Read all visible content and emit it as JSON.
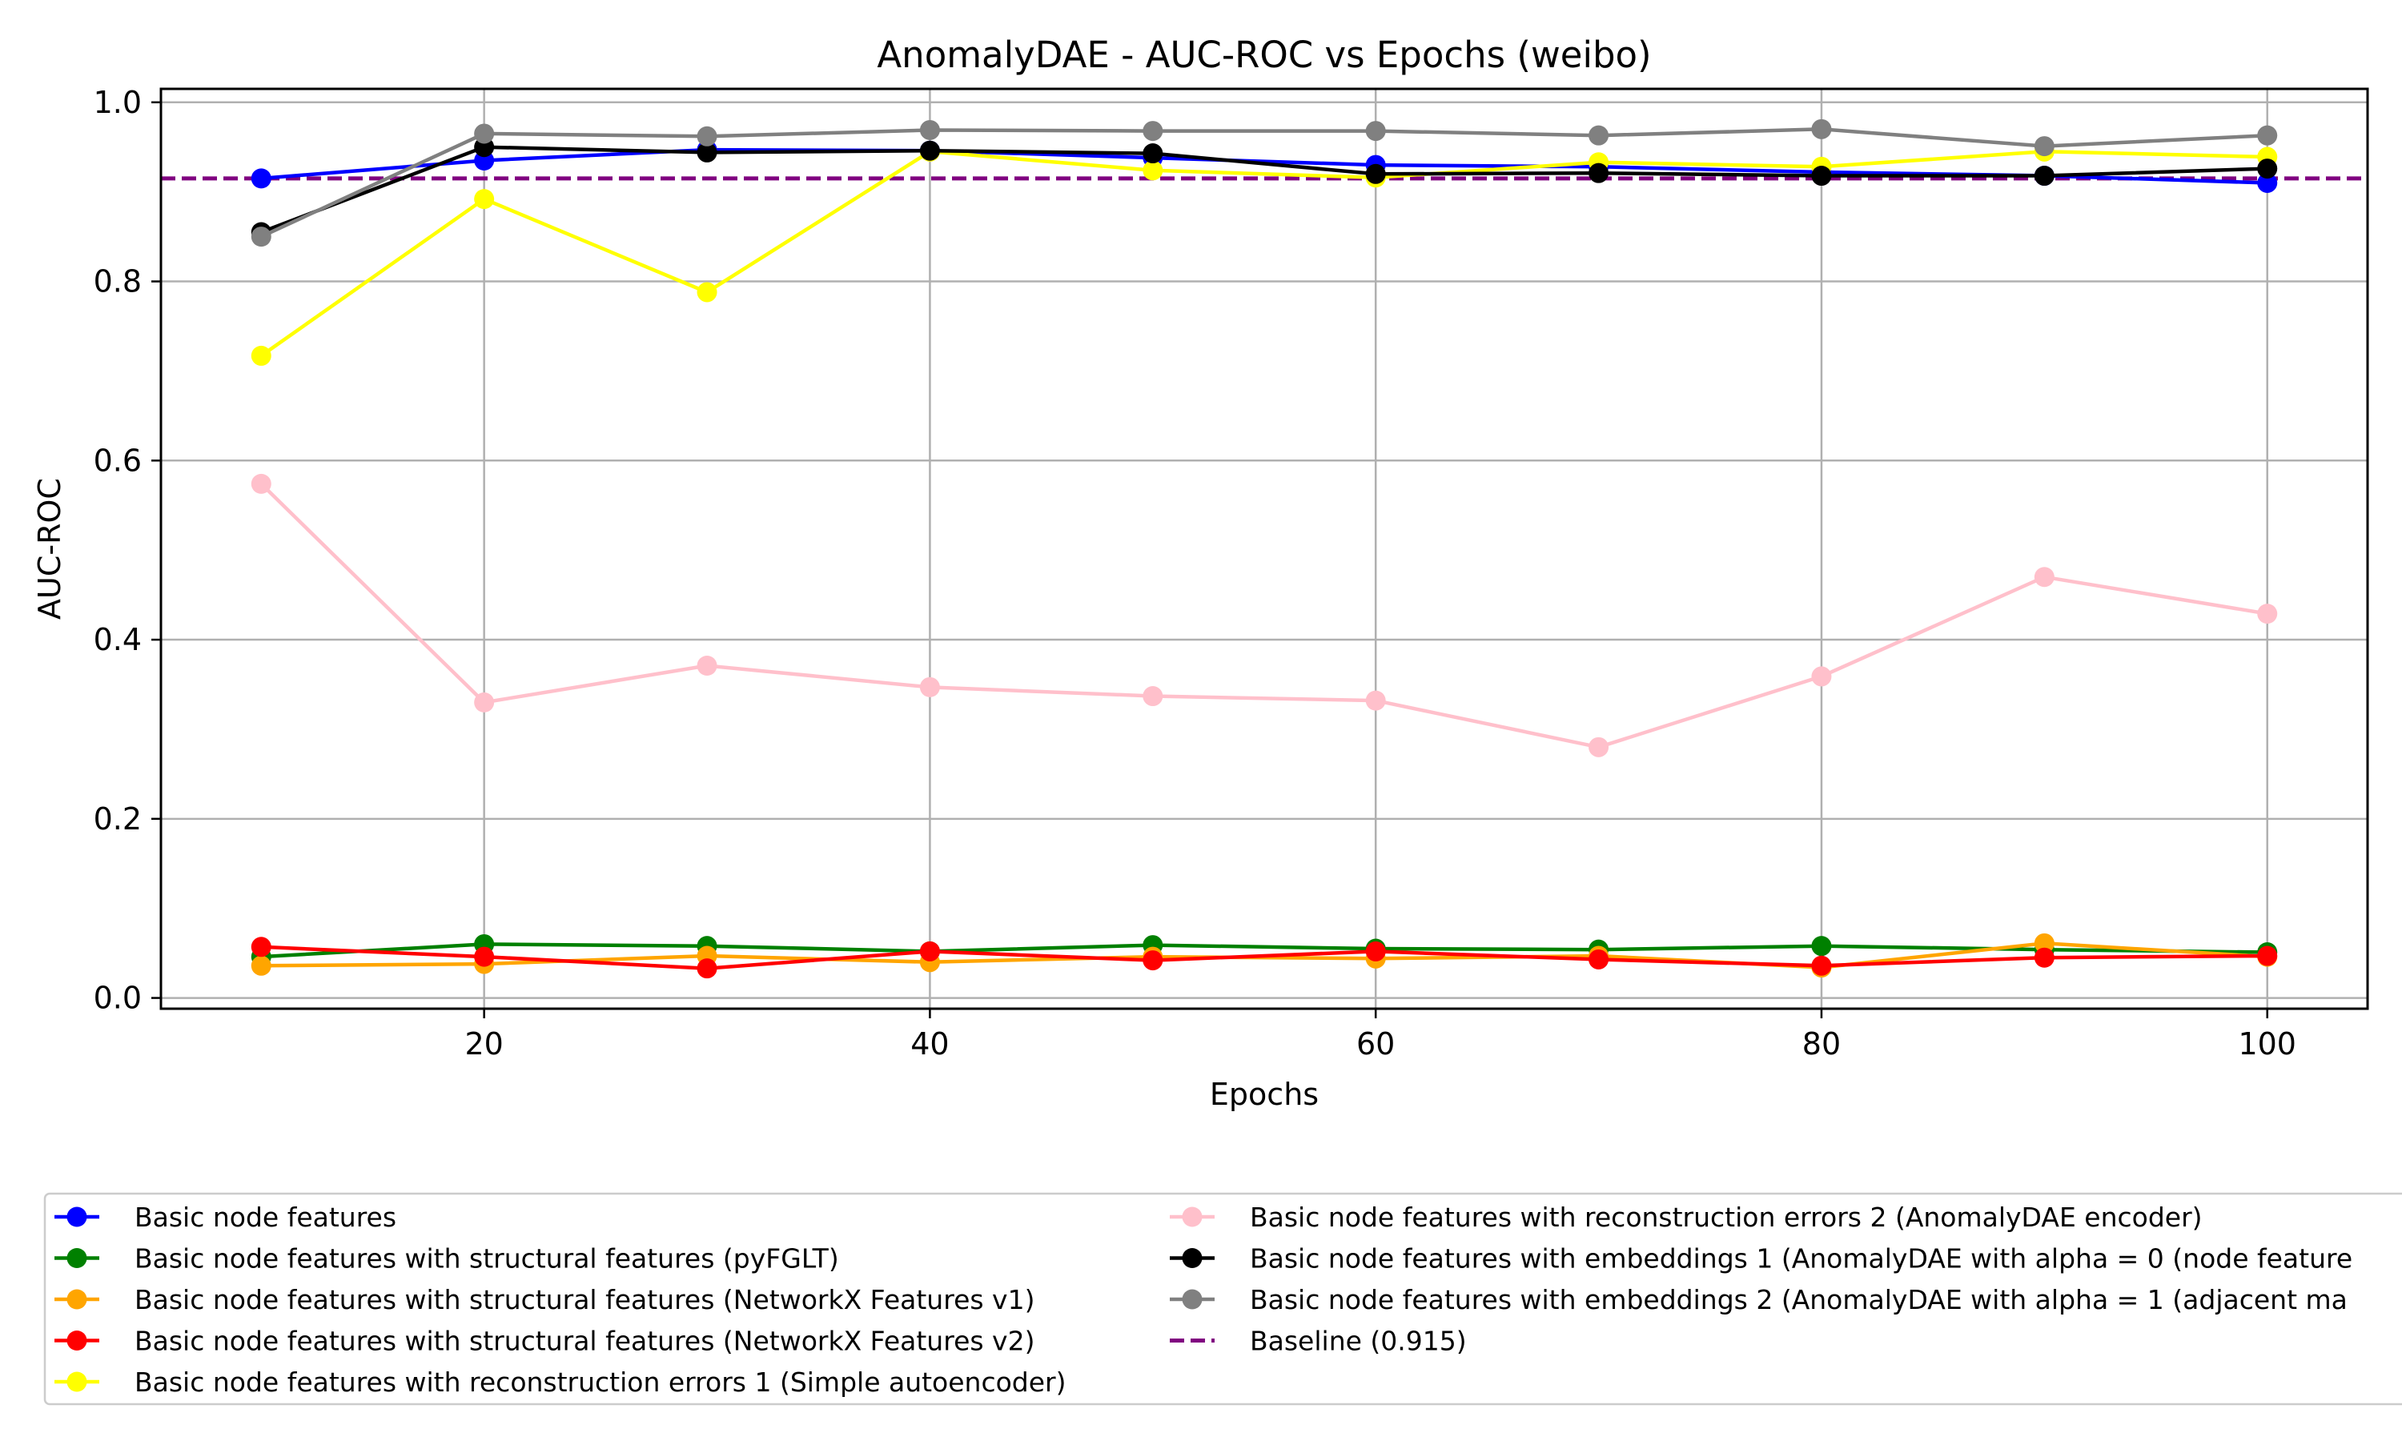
{
  "chart_data": {
    "type": "line",
    "title": "AnomalyDAE - AUC-ROC vs Epochs (weibo)",
    "xlabel": "Epochs",
    "ylabel": "AUC-ROC",
    "xlim": [
      5.5,
      104.5
    ],
    "ylim": [
      -0.012,
      1.015
    ],
    "xticks": [
      20,
      40,
      60,
      80,
      100
    ],
    "yticks": [
      0.0,
      0.2,
      0.4,
      0.6,
      0.8,
      1.0
    ],
    "grid": true,
    "legend_position": "below plot",
    "x": [
      10,
      20,
      30,
      40,
      50,
      60,
      70,
      80,
      90,
      100
    ],
    "series": [
      {
        "name": "Basic node features",
        "color": "#0000ff",
        "values": [
          0.915,
          0.935,
          0.947,
          0.946,
          0.938,
          0.93,
          0.928,
          0.922,
          0.918,
          0.91
        ]
      },
      {
        "name": "Basic node features with structural features (pyFGLT)",
        "color": "#008000",
        "values": [
          0.046,
          0.06,
          0.058,
          0.052,
          0.059,
          0.055,
          0.054,
          0.058,
          0.054,
          0.051
        ]
      },
      {
        "name": "Basic node features with structural features (NetworkX Features v1)",
        "color": "#ffa500",
        "values": [
          0.036,
          0.038,
          0.047,
          0.04,
          0.046,
          0.044,
          0.047,
          0.034,
          0.061,
          0.046
        ]
      },
      {
        "name": "Basic node features with structural features (NetworkX Features v2)",
        "color": "#ff0000",
        "values": [
          0.057,
          0.046,
          0.033,
          0.052,
          0.042,
          0.052,
          0.043,
          0.036,
          0.045,
          0.047
        ]
      },
      {
        "name": "Basic node features with reconstruction errors 1 (Simple autoencoder)",
        "color": "#ffff00",
        "values": [
          0.717,
          0.892,
          0.788,
          0.945,
          0.924,
          0.916,
          0.933,
          0.928,
          0.945,
          0.939
        ]
      },
      {
        "name": "Basic node features with reconstruction errors 2 (AnomalyDAE encoder)",
        "color": "#ffc0cb",
        "values": [
          0.574,
          0.33,
          0.371,
          0.347,
          0.337,
          0.332,
          0.28,
          0.359,
          0.47,
          0.429
        ]
      },
      {
        "name": "Basic node features with embeddings 1 (AnomalyDAE with alpha = 0 (node feature",
        "color": "#000000",
        "values": [
          0.855,
          0.95,
          0.944,
          0.946,
          0.943,
          0.92,
          0.921,
          0.918,
          0.918,
          0.926
        ]
      },
      {
        "name": "Basic node features with embeddings 2 (AnomalyDAE with alpha = 1 (adjacent ma",
        "color": "#808080",
        "values": [
          0.85,
          0.965,
          0.962,
          0.969,
          0.968,
          0.968,
          0.963,
          0.97,
          0.951,
          0.963
        ]
      }
    ],
    "baseline": {
      "name": "Baseline (0.915)",
      "value": 0.915,
      "color": "#800080"
    }
  }
}
